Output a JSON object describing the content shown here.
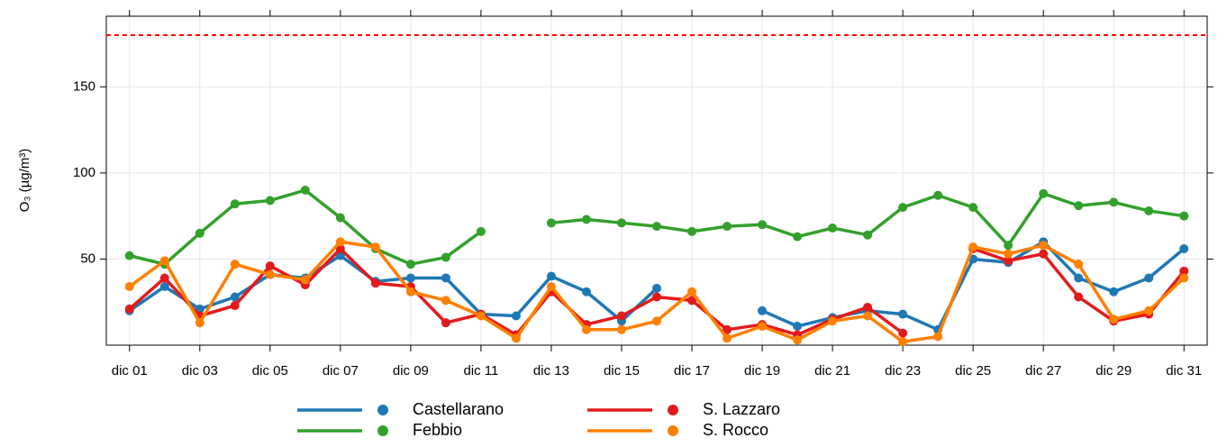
{
  "chart_data": {
    "type": "line",
    "y_label": "O₃ (µg/m³)",
    "categories": [
      "dic 01",
      null,
      "dic 03",
      null,
      "dic 05",
      null,
      "dic 07",
      null,
      "dic 09",
      null,
      "dic 11",
      null,
      "dic 13",
      null,
      "dic 15",
      null,
      "dic 17",
      null,
      "dic 19",
      null,
      "dic 21",
      null,
      "dic 23",
      null,
      "dic 25",
      null,
      "dic 27",
      null,
      "dic 29",
      null,
      "dic 31"
    ],
    "series": [
      {
        "name": "Castellarano",
        "color": "#1f78b4",
        "values": [
          20,
          34,
          21,
          28,
          41,
          39,
          52,
          37,
          39,
          39,
          18,
          17,
          40,
          31,
          14,
          33,
          null,
          null,
          20,
          11,
          16,
          20,
          18,
          9,
          50,
          48,
          60,
          39,
          31,
          39,
          56
        ]
      },
      {
        "name": "Febbio",
        "color": "#33a02c",
        "values": [
          52,
          47,
          65,
          82,
          84,
          90,
          74,
          56,
          47,
          51,
          66,
          null,
          71,
          73,
          71,
          69,
          66,
          69,
          70,
          63,
          68,
          64,
          80,
          87,
          80,
          58,
          88,
          81,
          83,
          78,
          75
        ]
      },
      {
        "name": "S. Lazzaro",
        "color": "#e31a1c",
        "values": [
          21,
          39,
          17,
          23,
          46,
          35,
          56,
          36,
          34,
          13,
          18,
          6,
          31,
          12,
          17,
          28,
          26,
          9,
          12,
          6,
          15,
          22,
          7,
          null,
          56,
          49,
          53,
          28,
          14,
          18,
          43
        ]
      },
      {
        "name": "S. Rocco",
        "color": "#ff7f00",
        "values": [
          34,
          49,
          13,
          47,
          41,
          38,
          60,
          57,
          31,
          26,
          17,
          4,
          34,
          9,
          9,
          14,
          31,
          4,
          11,
          3,
          14,
          17,
          2,
          5,
          57,
          53,
          58,
          47,
          15,
          20,
          39
        ]
      }
    ],
    "reference_line": {
      "value": 180,
      "color": "#ff0000"
    },
    "ylim": [
      0,
      191
    ],
    "yticks": [
      50,
      100,
      150
    ],
    "grid": true
  }
}
